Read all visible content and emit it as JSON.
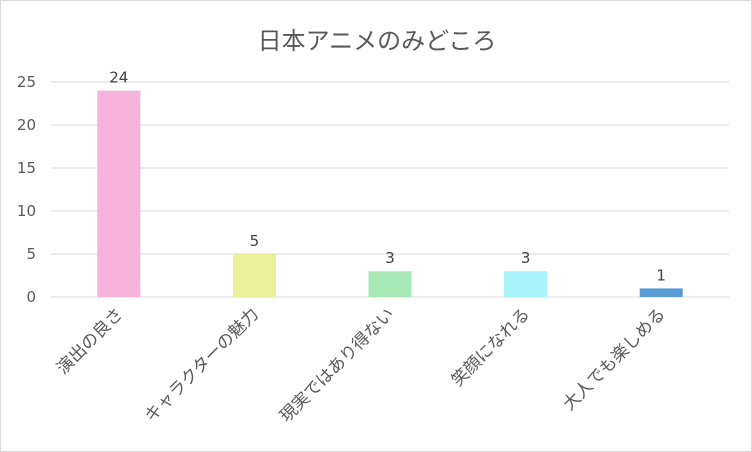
{
  "chart_data": {
    "type": "bar",
    "title": "日本アニメのみどころ",
    "xlabel": "",
    "ylabel": "",
    "categories": [
      "演出の良さ",
      "キャラクターの魅力",
      "現実ではあり得ない",
      "笑顔になれる",
      "大人でも楽しめる"
    ],
    "values": [
      24,
      5,
      3,
      3,
      1
    ],
    "colors": [
      "#f7b3dc",
      "#e9f29a",
      "#a8e9b9",
      "#a9f3fc",
      "#5b9bd5"
    ],
    "ylim": [
      0,
      25
    ],
    "yticks": [
      0,
      5,
      10,
      15,
      20,
      25
    ],
    "grid": true,
    "legend": "none"
  }
}
